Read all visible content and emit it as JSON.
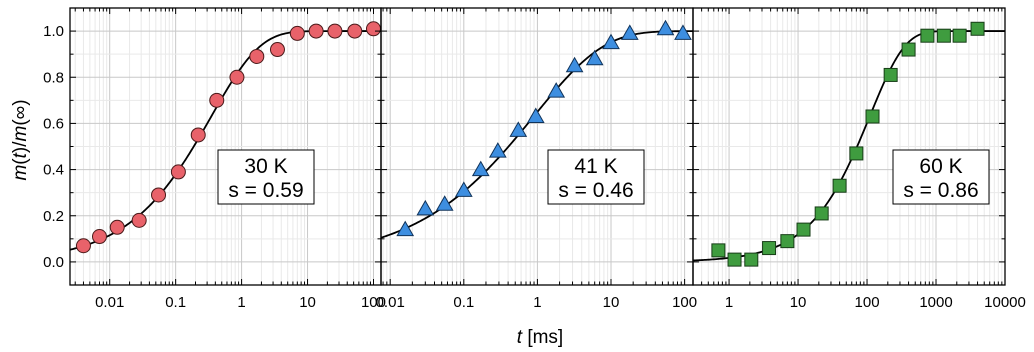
{
  "figure": {
    "ylabel_parts": [
      "m",
      "(",
      "t",
      ")/",
      "m",
      "(∞)"
    ],
    "xlabel_parts": [
      "t",
      " [ms]"
    ]
  },
  "chart_data": [
    {
      "type": "scatter",
      "xscale": "log",
      "xlim": [
        0.0025,
        130
      ],
      "ylim": [
        -0.1,
        1.1
      ],
      "yticks": [
        "0.0",
        "0.2",
        "0.4",
        "0.6",
        "0.8",
        "1.0"
      ],
      "xticks": [
        "0.01",
        "0.1",
        "1",
        "10",
        "100"
      ],
      "grid": true,
      "marker": "circle",
      "color": "#e8626a",
      "annotation": [
        "30 K",
        "s = 0.59"
      ],
      "points": {
        "x": [
          0.004,
          0.007,
          0.013,
          0.028,
          0.055,
          0.11,
          0.22,
          0.42,
          0.85,
          1.7,
          3.5,
          7,
          13.5,
          26,
          52,
          100
        ],
        "y": [
          0.07,
          0.11,
          0.15,
          0.18,
          0.29,
          0.39,
          0.55,
          0.7,
          0.8,
          0.89,
          0.92,
          0.99,
          1.0,
          1.0,
          1.0,
          1.01
        ]
      },
      "fit": {
        "tau": 0.35,
        "s": 0.59
      }
    },
    {
      "type": "scatter",
      "xscale": "log",
      "xlim": [
        0.0075,
        130
      ],
      "ylim": [
        -0.1,
        1.1
      ],
      "xticks": [
        "0.01",
        "0.1",
        "1",
        "10",
        "100"
      ],
      "grid": true,
      "marker": "triangle",
      "color": "#3d8ee0",
      "annotation": [
        "41 K",
        "s = 0.46"
      ],
      "points": {
        "x": [
          0.016,
          0.03,
          0.055,
          0.1,
          0.17,
          0.29,
          0.55,
          0.95,
          1.8,
          3.2,
          6,
          10,
          18,
          55,
          95
        ],
        "y": [
          0.14,
          0.23,
          0.25,
          0.31,
          0.4,
          0.48,
          0.57,
          0.63,
          0.74,
          0.85,
          0.88,
          0.95,
          0.99,
          1.01,
          0.99
        ]
      },
      "fit": {
        "tau": 0.9,
        "s": 0.46
      }
    },
    {
      "type": "scatter",
      "xscale": "log",
      "xlim": [
        0.3,
        10000
      ],
      "ylim": [
        -0.1,
        1.1
      ],
      "xticks": [
        "1",
        "10",
        "100",
        "1000",
        "10000"
      ],
      "grid": true,
      "marker": "square",
      "color": "#3f9c3f",
      "annotation": [
        "60 K",
        "s = 0.86"
      ],
      "points": {
        "x": [
          0.7,
          1.2,
          2.1,
          3.8,
          7,
          12,
          22,
          40,
          70,
          120,
          220,
          400,
          750,
          1300,
          2200,
          4000
        ],
        "y": [
          0.05,
          0.01,
          0.01,
          0.06,
          0.09,
          0.14,
          0.21,
          0.33,
          0.47,
          0.63,
          0.81,
          0.92,
          0.98,
          0.98,
          0.98,
          1.01
        ]
      },
      "fit": {
        "tau": 110,
        "s": 0.86
      }
    }
  ]
}
